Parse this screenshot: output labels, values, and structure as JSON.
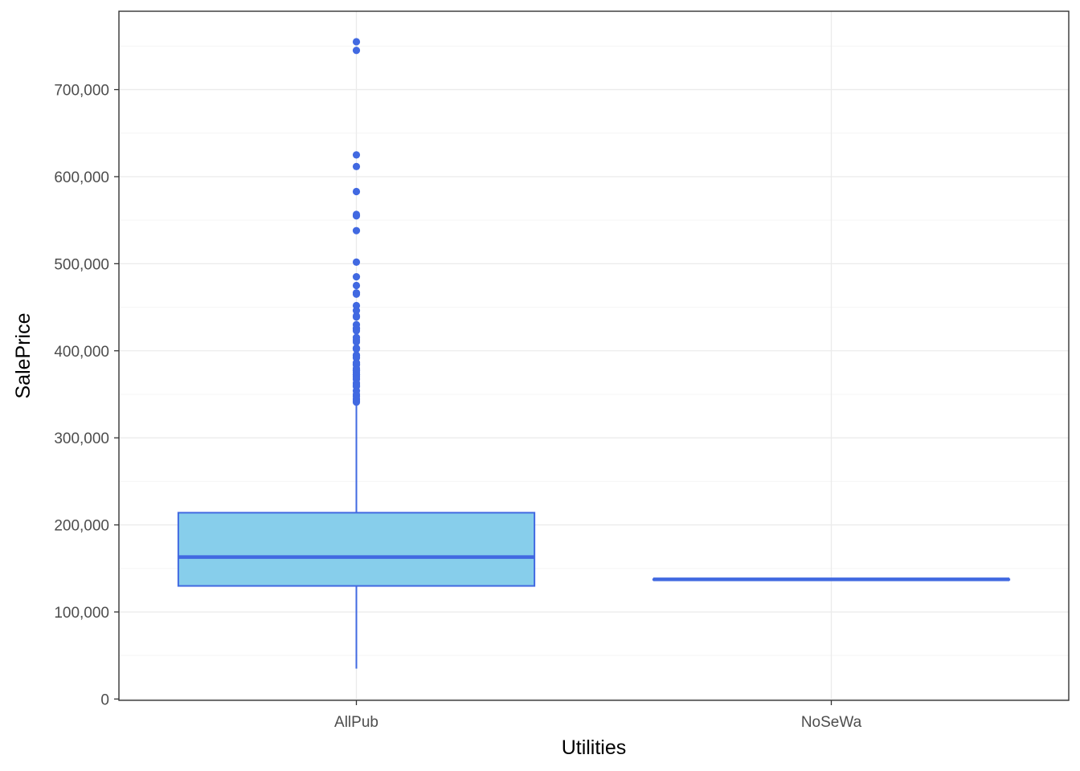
{
  "chart_data": {
    "type": "boxplot",
    "xlabel": "Utilities",
    "ylabel": "SalePrice",
    "categories": [
      "AllPub",
      "NoSeWa"
    ],
    "ylim": [
      -1500,
      790000
    ],
    "y_ticks": [
      0,
      100000,
      200000,
      300000,
      400000,
      500000,
      600000,
      700000
    ],
    "y_tick_labels": [
      "0",
      "100,000",
      "200,000",
      "300,000",
      "400,000",
      "500,000",
      "600,000",
      "700,000"
    ],
    "grid": true,
    "theme": "bw",
    "boxes": [
      {
        "category": "AllPub",
        "whisker_low": 34900,
        "q1": 129900,
        "median": 163000,
        "q3": 214000,
        "whisker_high": 340000,
        "outliers": [
          755000,
          745000,
          625000,
          611657,
          582933,
          556581,
          555000,
          538000,
          501837,
          485000,
          475000,
          466500,
          465000,
          451950,
          446261,
          440000,
          438780,
          430000,
          426000,
          424870,
          423000,
          415298,
          412500,
          410000,
          403000,
          402861,
          402000,
          395192,
          394617,
          392500,
          392000,
          386250,
          385000,
          384500,
          383970,
          380000,
          378500,
          377500,
          377426,
          375000,
          372500,
          372402,
          370878,
          369900,
          368000,
          367294,
          363000,
          361919,
          360000,
          359100,
          354000,
          350000,
          348000,
          345000,
          344133,
          342643,
          341000
        ]
      },
      {
        "category": "NoSeWa",
        "whisker_low": 137500,
        "q1": 137500,
        "median": 137500,
        "q3": 137500,
        "whisker_high": 137500,
        "outliers": []
      }
    ],
    "colors": {
      "box_fill": "#87ceeb",
      "box_line": "#4169e1",
      "outlier": "#4169e1",
      "grid_major": "#ebebeb",
      "grid_minor": "#f5f5f5",
      "panel_border": "#333333",
      "tick_text": "#4d4d4d",
      "title_text": "#000000"
    }
  }
}
